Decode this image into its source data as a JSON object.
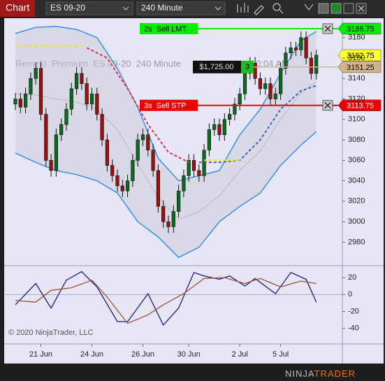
{
  "toolbar": {
    "tab": "Chart",
    "instrument": "ES 09-20",
    "interval": "240 Minute"
  },
  "chart_data": [
    {
      "type": "candlestick",
      "watermark": "Remek!  Premium  ES 09-20  240 Minute",
      "watermark_tail": "0:04 AM",
      "categories": [
        null,
        null,
        null,
        null,
        null,
        "21 Jun",
        null,
        null,
        null,
        null,
        null,
        null,
        null,
        null,
        null,
        "24 Jun",
        null,
        null,
        null,
        null,
        null,
        null,
        null,
        null,
        null,
        "26 Jun",
        null,
        null,
        null,
        null,
        null,
        null,
        null,
        null,
        "30 Jun",
        null,
        null,
        null,
        null,
        null,
        null,
        null,
        null,
        null,
        "2 Jul",
        null,
        null,
        null,
        null,
        null,
        null,
        null,
        "5 Jul",
        null,
        null,
        null,
        null,
        null,
        null,
        null
      ],
      "open": [
        3115,
        3120,
        3112,
        3125,
        3140,
        3150,
        3105,
        3060,
        3050,
        3085,
        3095,
        3110,
        3130,
        3145,
        3135,
        3115,
        3125,
        3105,
        3080,
        3055,
        3045,
        3035,
        3030,
        3040,
        3060,
        3080,
        3085,
        3070,
        3050,
        3015,
        3000,
        2995,
        3010,
        3030,
        3045,
        3060,
        3050,
        3045,
        3070,
        3090,
        3095,
        3085,
        3100,
        3105,
        3115,
        3125,
        3145,
        3155,
        3140,
        3130,
        3135,
        3120,
        3125,
        3150,
        3165,
        3170,
        3168,
        3180,
        3160,
        3145
      ],
      "high": [
        3126,
        3126,
        3131,
        3146,
        3156,
        3156,
        3111,
        3066,
        3091,
        3101,
        3116,
        3136,
        3151,
        3151,
        3141,
        3131,
        3131,
        3111,
        3086,
        3061,
        3051,
        3041,
        3046,
        3066,
        3086,
        3091,
        3091,
        3076,
        3056,
        3021,
        3006,
        3016,
        3036,
        3051,
        3066,
        3066,
        3056,
        3076,
        3096,
        3101,
        3101,
        3106,
        3111,
        3121,
        3131,
        3151,
        3161,
        3161,
        3146,
        3141,
        3141,
        3131,
        3156,
        3171,
        3176,
        3176,
        3186,
        3186,
        3166,
        3168
      ],
      "low": [
        3109,
        3106,
        3106,
        3119,
        3134,
        3099,
        3054,
        3044,
        3044,
        3079,
        3089,
        3104,
        3124,
        3129,
        3109,
        3109,
        3099,
        3074,
        3049,
        3039,
        3029,
        3024,
        3024,
        3034,
        3054,
        3074,
        3064,
        3044,
        3009,
        2994,
        2989,
        2989,
        3004,
        3024,
        3039,
        3044,
        3039,
        3039,
        3064,
        3084,
        3079,
        3079,
        3094,
        3099,
        3109,
        3119,
        3139,
        3134,
        3124,
        3124,
        3114,
        3114,
        3119,
        3144,
        3159,
        3162,
        3162,
        3154,
        3139,
        3139
      ],
      "close": [
        3120,
        3112,
        3125,
        3140,
        3150,
        3105,
        3060,
        3050,
        3085,
        3095,
        3110,
        3130,
        3145,
        3135,
        3115,
        3125,
        3105,
        3080,
        3055,
        3045,
        3035,
        3030,
        3040,
        3060,
        3080,
        3085,
        3070,
        3050,
        3015,
        3000,
        2995,
        3010,
        3030,
        3045,
        3060,
        3050,
        3045,
        3070,
        3090,
        3095,
        3085,
        3100,
        3105,
        3115,
        3125,
        3145,
        3155,
        3140,
        3130,
        3135,
        3120,
        3125,
        3150,
        3165,
        3170,
        3168,
        3180,
        3160,
        3145,
        3162.75
      ],
      "up_color": "#0a6b1e",
      "down_color": "#9c1010",
      "bands": {
        "x": [
          0,
          4,
          8,
          12,
          16,
          20,
          24,
          28,
          32,
          36,
          40,
          44,
          48,
          52,
          56,
          59
        ],
        "upper": [
          3184,
          3190,
          3191,
          3188,
          3180,
          3150,
          3112,
          3062,
          3040,
          3045,
          3050,
          3085,
          3110,
          3145,
          3177,
          3186
        ],
        "middle": [
          3125,
          3124,
          3120,
          3117,
          3110,
          3090,
          3056,
          3024,
          3002,
          3010,
          3025,
          3050,
          3069,
          3100,
          3126,
          3137
        ],
        "lower": [
          3067,
          3058,
          3050,
          3046,
          3040,
          3028,
          3000,
          2985,
          2965,
          2975,
          3000,
          3015,
          3028,
          3055,
          3075,
          3088
        ],
        "color": "#3a8ee6",
        "middle_color": "#b8b8b8"
      },
      "series": [
        {
          "x": [
            14,
            18,
            22,
            26,
            30,
            34
          ],
          "values": [
            3170,
            3160,
            3130,
            3095,
            3068,
            3058
          ],
          "color": "#e0304a",
          "dashed": true
        },
        {
          "x": [
            36,
            40,
            44,
            48,
            52,
            56,
            59
          ],
          "values": [
            3058,
            3058,
            3060,
            3080,
            3110,
            3128,
            3133
          ],
          "color": "#3a5fd0",
          "dashed": true
        },
        {
          "x": [
            0,
            13,
            25,
            37,
            44
          ],
          "values": [
            3172,
            3172,
            null,
            3060,
            3060
          ],
          "color": "#f2e600",
          "dashed": true
        }
      ],
      "orders": [
        {
          "label": "2s  Sell LMT",
          "price": 3188.75,
          "color": "#00ee00",
          "text_color": "#000000"
        },
        {
          "label": "3s  Sell STP",
          "price": 3113.75,
          "color": "#ee0000",
          "text_color": "#ffffff"
        }
      ],
      "position": {
        "pnl": "$1,725.00",
        "quantity": 3,
        "price": 3151.25
      },
      "price_markers": [
        {
          "value": 3162.75,
          "color": "#ffff33"
        },
        {
          "value": 3151.25,
          "color": "#d2b48c"
        }
      ],
      "ylim": [
        2957,
        3199
      ],
      "yticks": [
        3180,
        3160,
        3140,
        3120,
        3100,
        3080,
        3060,
        3040,
        3020,
        3000,
        2980
      ]
    },
    {
      "type": "line",
      "series": [
        {
          "x": [
            0,
            4,
            7,
            10,
            13,
            16,
            20,
            22,
            26,
            29,
            32,
            35,
            37,
            40,
            42,
            45,
            47,
            51,
            54,
            57,
            59
          ],
          "values": [
            -12,
            13,
            -16,
            17,
            27,
            9,
            -32,
            -32,
            1,
            -36,
            -16,
            26,
            22,
            18,
            22,
            10,
            19,
            1,
            26,
            18,
            -9
          ],
          "color": "#1a1a8c"
        },
        {
          "x": [
            0,
            4,
            7,
            11,
            15,
            18,
            22,
            26,
            29,
            33,
            37,
            41,
            45,
            48,
            52,
            56,
            59
          ],
          "values": [
            -7,
            -9,
            5,
            8,
            17,
            -3,
            -34,
            -24,
            -12,
            1,
            19,
            20,
            13,
            19,
            9,
            16,
            13
          ],
          "color": "#a0522d"
        }
      ],
      "ylim": [
        -57.5,
        33.3
      ],
      "yticks": [
        20,
        0,
        -20,
        -40
      ]
    }
  ],
  "footer": {
    "copyright": "© 2020 NinjaTrader, LLC",
    "logo_a": "NINJA",
    "logo_b": "TRADER"
  }
}
